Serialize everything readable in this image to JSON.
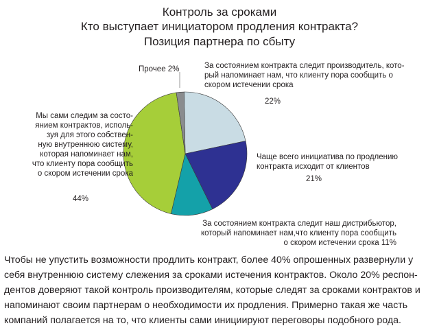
{
  "titles": [
    "Контроль за сроками",
    "Кто выступает инициатором продления контракта?",
    "Позиция партнера по сбыту"
  ],
  "chart_data": {
    "type": "pie",
    "title": "Контроль за сроками",
    "subtitle": "Кто выступает инициатором продления контракта? Позиция партнера по сбыту",
    "slices": [
      {
        "label_lines": [
          "За состоянием контракта следит производитель, кото-",
          "рый напоминает нам, что клиенту пора сообщить о",
          "скором истечении срока"
        ],
        "value": 22,
        "pct_text": "22%",
        "color": "#c9dce4"
      },
      {
        "label_lines": [
          "Чаще всего инициатива по продлению",
          "контракта исходит от клиентов"
        ],
        "value": 21,
        "pct_text": "21%",
        "color": "#2e3192"
      },
      {
        "label_lines": [
          "За состоянием контракта следит наш дистрибьютор,",
          "который напоминает нам,что клиенту пора сообщить",
          "о скором истечении срока"
        ],
        "value": 11,
        "pct_text": "11%",
        "color": "#14a1a9"
      },
      {
        "label_lines": [
          "Мы сами следим за состо-",
          "янием контрактов, исполь-",
          "зуя для этого собствен-",
          "ную внутреннюю систему,",
          "которая напоминает нам,",
          "что клиенту пора сообщить",
          "о скором истечении срока"
        ],
        "value": 44,
        "pct_text": "44%",
        "color": "#a6ce39"
      },
      {
        "label_lines": [
          "Прочее 2%"
        ],
        "value": 2,
        "pct_text": "",
        "color": "#8a8c8e"
      }
    ]
  },
  "paragraph_lines": [
    "Чтобы не упустить возможности продлить контракт, более 40% опрошенных развернули у",
    "себя внутреннюю систему слежения за сроками истечения контрактов. Около 20% респон-",
    "дентов доверяют такой контроль производителям, которые следят за сроками контрактов и",
    "напоминают своим партнерам о необходимости их продления. Примерно такая же часть",
    "компаний полагается на то, что клиенты сами инициируют переговоры подобного рода."
  ]
}
